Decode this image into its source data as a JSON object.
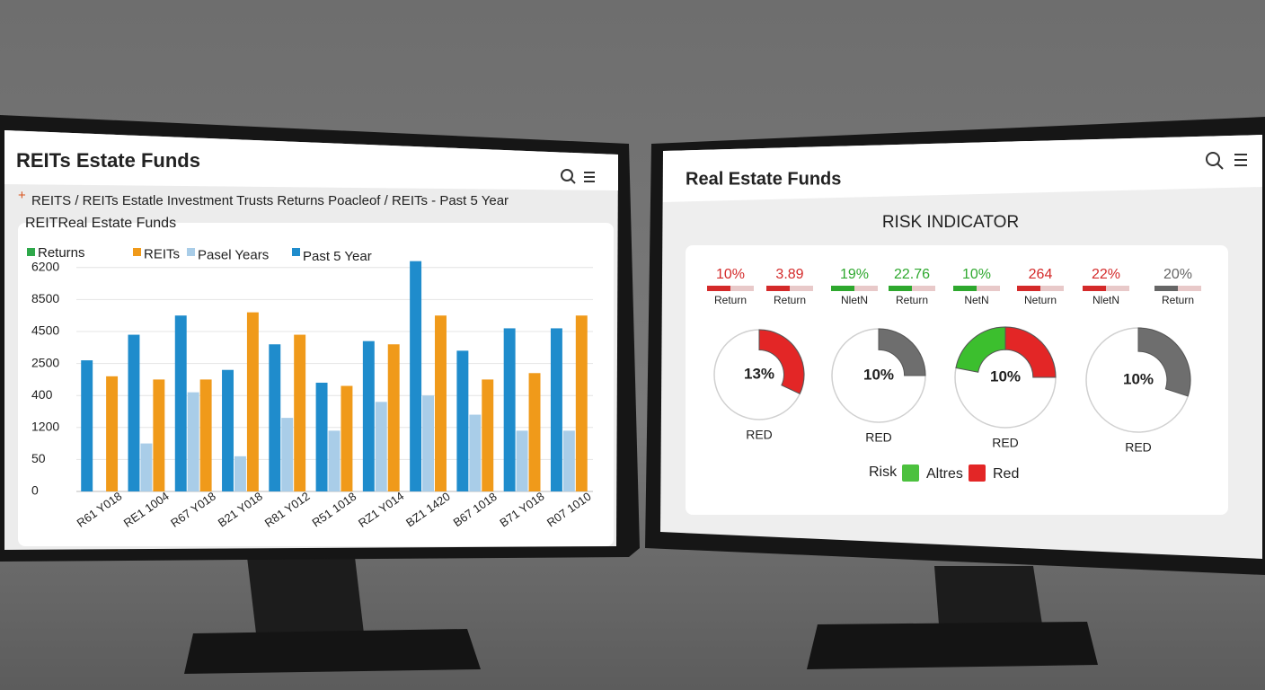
{
  "left_screen": {
    "title": "REITs Estate Funds",
    "breadcrumb_mark": "+",
    "breadcrumb": "REITS / REITs Estatle Investment Trusts Returns Poacleof / REITs - Past 5 Year",
    "panel_title": "REITReal Estate Funds",
    "chart_data": {
      "type": "bar",
      "categories": [
        "R61 Y018",
        "RE1 1004",
        "R67 Y018",
        "B21 Y018",
        "R81 Y012",
        "R51 1018",
        "RZ1 Y014",
        "BZ1 1420",
        "B67 1018",
        "B71 Y018",
        "R07 1010"
      ],
      "series": [
        {
          "name": "Returns",
          "color": "#2ea84a",
          "values": [
            null,
            null,
            null,
            null,
            null,
            null,
            null,
            null,
            null,
            null,
            null
          ]
        },
        {
          "name": "REITs",
          "color": "#f09a1a",
          "values": [
            3.6,
            3.5,
            3.5,
            5.6,
            4.9,
            3.3,
            4.6,
            5.5,
            3.5,
            3.7,
            5.5
          ]
        },
        {
          "name": "Pasel Years",
          "color": "#a9cde8",
          "values": [
            null,
            1.5,
            3.1,
            1.1,
            2.3,
            1.9,
            2.8,
            3.0,
            2.4,
            1.9,
            1.9
          ]
        },
        {
          "name": "Past 5 Year",
          "color": "#1f8ccc",
          "values": [
            4.1,
            4.9,
            5.5,
            3.8,
            4.6,
            3.4,
            4.7,
            7.2,
            4.4,
            5.1,
            5.1
          ]
        }
      ],
      "ylim": [
        0,
        7.5
      ],
      "yticks": [
        {
          "value": 0,
          "label": "0"
        },
        {
          "value": 1,
          "label": "50"
        },
        {
          "value": 2,
          "label": "1200"
        },
        {
          "value": 3,
          "label": "400"
        },
        {
          "value": 4,
          "label": "2500"
        },
        {
          "value": 5,
          "label": "4500"
        },
        {
          "value": 6,
          "label": "8500"
        },
        {
          "value": 7,
          "label": "6200"
        }
      ],
      "grid": true
    }
  },
  "right_screen": {
    "title": "Real Estate Funds",
    "panel_title": "RISK INDICATOR",
    "stats": [
      {
        "value": "10%",
        "label": "Return",
        "color": "#d42a2a"
      },
      {
        "value": "3.89",
        "label": "Return",
        "color": "#d42a2a"
      },
      {
        "value": "19%",
        "label": "NletN",
        "color": "#2ea82e"
      },
      {
        "value": "22.76",
        "label": "Return",
        "color": "#2ea82e"
      },
      {
        "value": "10%",
        "label": "NetN",
        "color": "#2ea82e"
      },
      {
        "value": "264",
        "label": "Neturn",
        "color": "#d42a2a"
      },
      {
        "value": "22%",
        "label": "NletN",
        "color": "#d42a2a"
      },
      {
        "value": "20%",
        "label": "Return",
        "color": "#666666"
      }
    ],
    "gauges": [
      {
        "value": "13%",
        "label": "RED",
        "segments": [
          {
            "color": "#e32626",
            "start": 0,
            "end": 0.32
          }
        ]
      },
      {
        "value": "10%",
        "label": "RED",
        "segments": [
          {
            "color": "#6e6e6e",
            "start": 0,
            "end": 0.25
          }
        ]
      },
      {
        "value": "10%",
        "label": "RED",
        "segments": [
          {
            "color": "#3cbf2e",
            "start": 0.78,
            "end": 1
          },
          {
            "color": "#e32626",
            "start": 0,
            "end": 0.25
          }
        ]
      },
      {
        "value": "10%",
        "label": "RED",
        "segments": [
          {
            "color": "#6e6e6e",
            "start": 0,
            "end": 0.3
          }
        ]
      }
    ],
    "legend": {
      "title": "Risk",
      "items": [
        {
          "name": "Altres",
          "color": "#4cc13e"
        },
        {
          "name": "Red",
          "color": "#e32626"
        }
      ]
    }
  }
}
